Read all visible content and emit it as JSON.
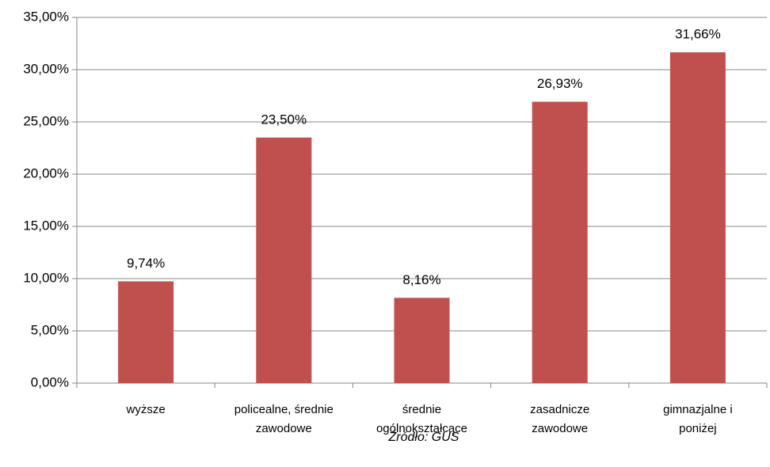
{
  "chart_data": {
    "type": "bar",
    "categories": [
      "wyższe",
      "policealne, średnie zawodowe",
      "średnie ogólnokształcące",
      "zasadnicze zawodowe",
      "gimnazjalne i poniżej"
    ],
    "values": [
      9.74,
      23.5,
      8.16,
      26.93,
      31.66
    ],
    "value_labels": [
      "9,74%",
      "23,50%",
      "8,16%",
      "26,93%",
      "31,66%"
    ],
    "color": "#c0504d",
    "ylim": [
      0,
      35
    ],
    "yticks": [
      {
        "value": 0,
        "label": "0,00%"
      },
      {
        "value": 5,
        "label": "5,00%"
      },
      {
        "value": 10,
        "label": "10,00%"
      },
      {
        "value": 15,
        "label": "15,00%"
      },
      {
        "value": 20,
        "label": "20,00%"
      },
      {
        "value": 25,
        "label": "25,00%"
      },
      {
        "value": 30,
        "label": "30,00%"
      },
      {
        "value": 35,
        "label": "35,00%"
      }
    ],
    "grid": true,
    "source": "Źródło: GUS"
  }
}
